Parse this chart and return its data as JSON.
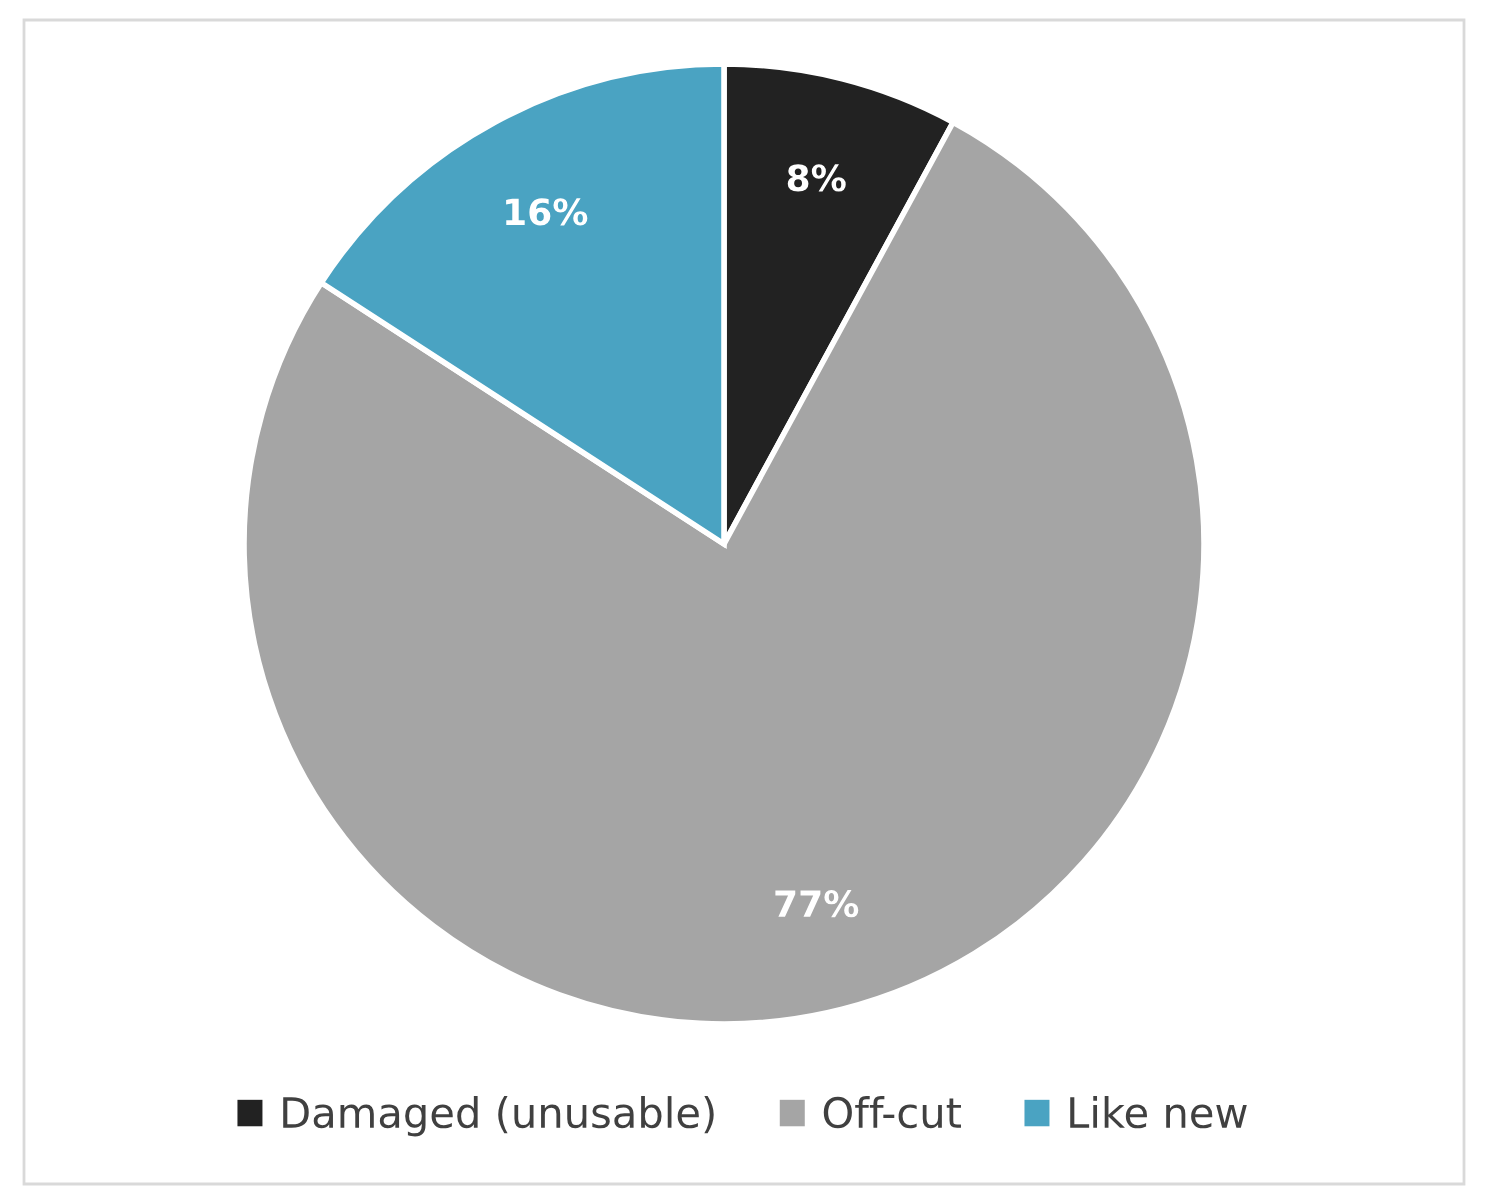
{
  "chart_data": {
    "type": "pie",
    "categories": [
      "Damaged (unusable)",
      "Off-cut",
      "Like new"
    ],
    "values": [
      8,
      77,
      16
    ],
    "colors": [
      "#222222",
      "#a5a5a5",
      "#4aa3c2"
    ],
    "value_labels": [
      "8%",
      "77%",
      "16%"
    ],
    "legend": "bottom"
  }
}
